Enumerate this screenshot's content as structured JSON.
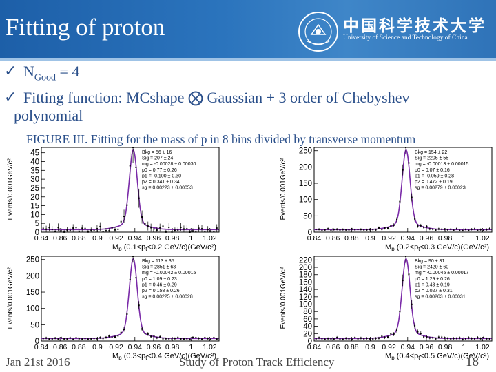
{
  "slide": {
    "title": "Fitting of proton",
    "university_cn": "中国科学技术大学",
    "university_en": "University of Science and Technology of China"
  },
  "bullets": [
    {
      "check": "✓",
      "text": "N"
    },
    {
      "check": "✓",
      "text": "Fitting function: MCshape ⨂ Gaussian + 3 order of Chebyshev",
      "cont": "polynomial"
    }
  ],
  "ngood": {
    "sub": "Good",
    "rest": " = 4"
  },
  "figure_caption": "FIGURE III. Fitting for the mass of p in 8 bins divided by transverse momentum",
  "plots": [
    {
      "ylabel": "Events/0.001GeV/c²",
      "xlabel": "M",
      "xlabel_suffix": " (0.1<p",
      "xlabel_end": "<0.2 GeV/c)(GeV/c²)",
      "xticks": [
        "0.84",
        "0.86",
        "0.88",
        "0.9",
        "0.92",
        "0.94",
        "0.96",
        "0.98",
        "1",
        "1.02"
      ],
      "yticks": [
        "0",
        "5",
        "10",
        "15",
        "20",
        "25",
        "30",
        "35",
        "40",
        "45"
      ],
      "ymax": 48,
      "stats": [
        "Bkg  =    56 ± 16",
        "Sig  =   207 ± 24",
        "mg  = -0.00028 ± 0.00030",
        "p0  =   0.77 ± 0.26",
        "p1  = -0.100 ± 0.30",
        "p2  =  0.341 ± 0.34",
        "sg  = 0.00223 ± 0.00053"
      ]
    },
    {
      "ylabel": "Events/0.001GeV/c²",
      "xlabel": "M",
      "xlabel_suffix": " (0.2<p",
      "xlabel_end": "<0.3 GeV/c)(GeV/c²)",
      "xticks": [
        "0.84",
        "0.86",
        "0.88",
        "0.9",
        "0.92",
        "0.94",
        "0.96",
        "0.98",
        "1",
        "1.02"
      ],
      "yticks": [
        "0",
        "50",
        "100",
        "150",
        "200",
        "250"
      ],
      "ymax": 260,
      "stats": [
        "Bkg  =   154 ± 22",
        "Sig  =  2205 ± 55",
        "mg  = -0.00013 ± 0.00015",
        "p0  =   0.07 ± 0.16",
        "p1  = -0.059 ± 0.28",
        "p2  =  0.472 ± 0.19",
        "sg  = 0.00279 ± 0.00023"
      ]
    },
    {
      "ylabel": "Events/0.001GeV/c²",
      "xlabel": "M",
      "xlabel_suffix": " (0.3<p",
      "xlabel_end": "<0.4 GeV/c)(GeV/c²)",
      "xticks": [
        "0.84",
        "0.86",
        "0.88",
        "0.9",
        "0.92",
        "0.94",
        "0.96",
        "0.98",
        "1",
        "1.02"
      ],
      "yticks": [
        "0",
        "50",
        "100",
        "150",
        "200",
        "250"
      ],
      "ymax": 260,
      "stats": [
        "Bkg  =   113 ± 35",
        "Sig  =  2851 ± 63",
        "mg  = -0.00042 ± 0.00015",
        "p0  =   1.09 ± 0.23",
        "p1  =   0.46 ± 0.29",
        "p2  =  0.158 ± 0.26",
        "sg  = 0.00225 ± 0.00028"
      ]
    },
    {
      "ylabel": "Events/0.001GeV/c²",
      "xlabel": "M",
      "xlabel_suffix": " (0.4<p",
      "xlabel_end": "<0.5 GeV/c)(GeV/c²)",
      "xticks": [
        "0.84",
        "0.86",
        "0.88",
        "0.9",
        "0.92",
        "0.94",
        "0.96",
        "0.98",
        "1",
        "1.02"
      ],
      "yticks": [
        "0",
        "20",
        "40",
        "60",
        "80",
        "100",
        "120",
        "140",
        "160",
        "180",
        "200",
        "220"
      ],
      "ymax": 230,
      "stats": [
        "Bkg  =    90 ± 31",
        "Sig  =  2420 ± 60",
        "mg  = -0.00045 ± 0.00017",
        "p0  =   1.29 ± 0.26",
        "p1  =   0.43 ± 0.19",
        "p2  =  0.027 ± 0.31",
        "sg  = 0.00263 ± 0.00031"
      ]
    }
  ],
  "footer": {
    "date": "Jan 21st 2016",
    "title": "Study of Proton Track Efficiency",
    "page": "18"
  },
  "colors": {
    "header": "#2b74bd",
    "text": "#2a4f8a",
    "fit": "#7a2aa8",
    "data": "#000000"
  }
}
